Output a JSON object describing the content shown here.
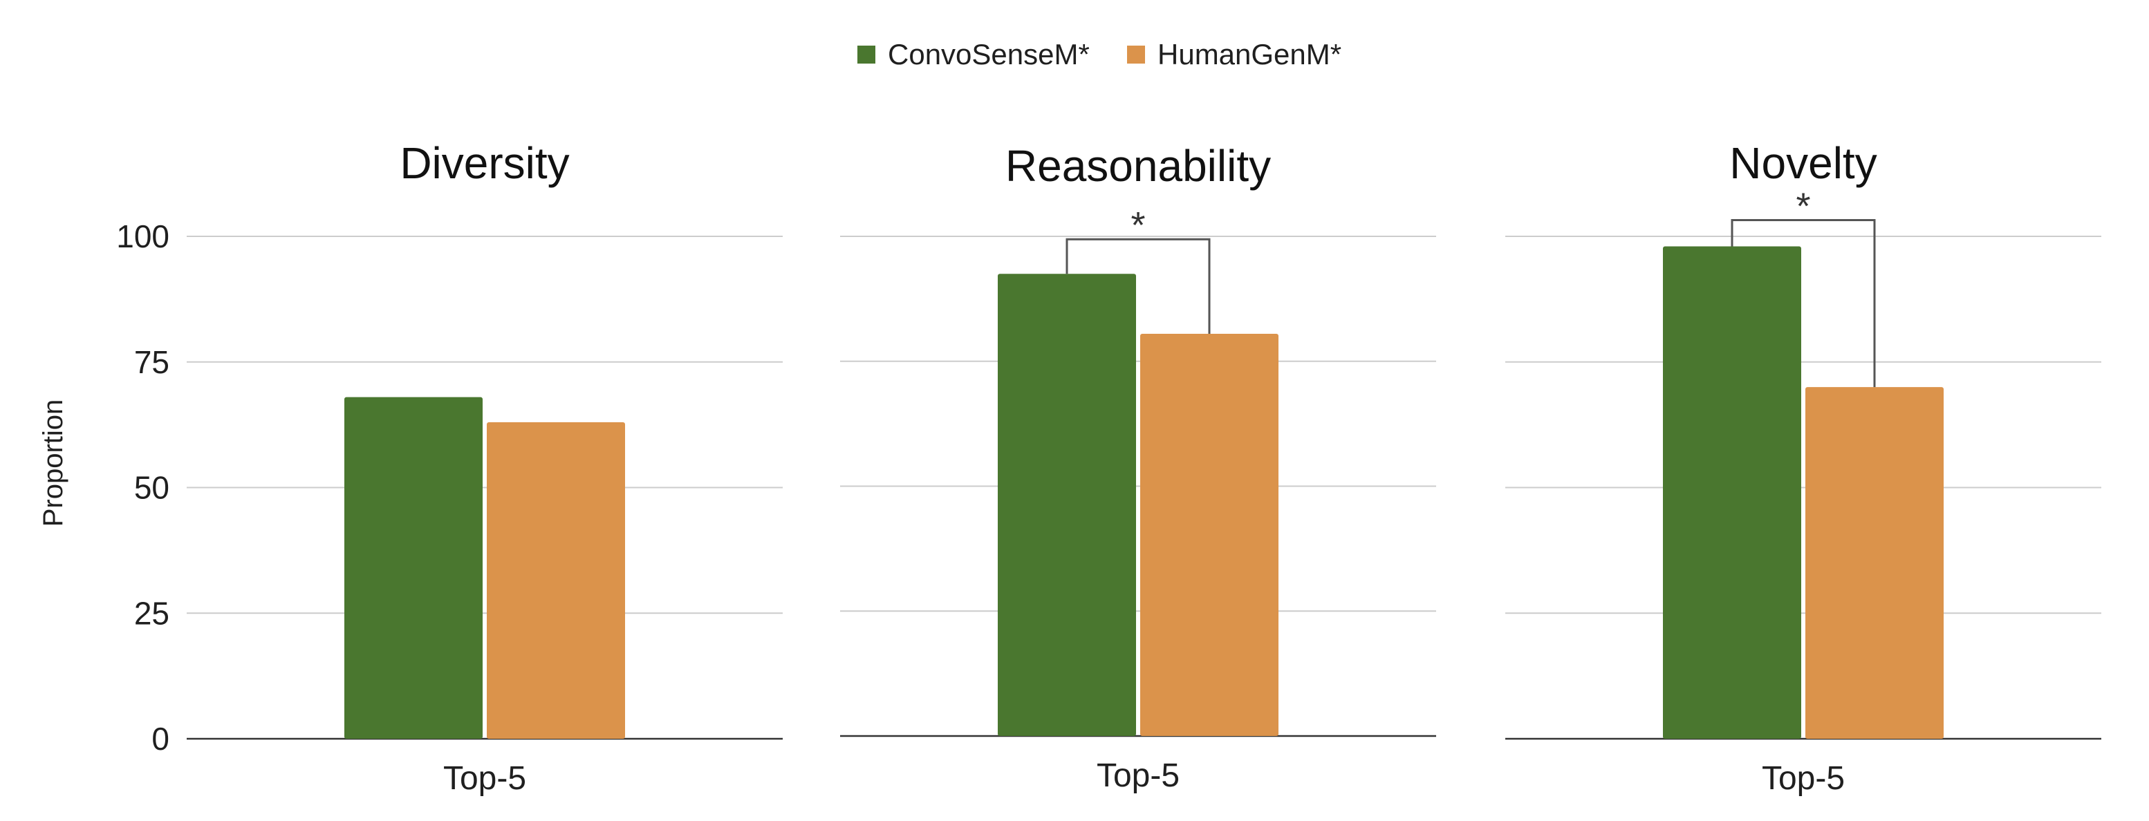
{
  "legend": {
    "items": [
      {
        "label": "ConvoSenseM*",
        "color": "#4a772f"
      },
      {
        "label": "HumanGenM*",
        "color": "#db934b"
      }
    ]
  },
  "y_axis_label": "Proportion",
  "chart_data": [
    {
      "type": "bar",
      "title": "Diversity",
      "categories": [
        "Top-5"
      ],
      "ylim": [
        0,
        100
      ],
      "yticks": [
        0,
        25,
        50,
        75,
        100
      ],
      "ylabel": "Proportion",
      "grid": true,
      "series": [
        {
          "name": "ConvoSenseM*",
          "values": [
            68
          ]
        },
        {
          "name": "HumanGenM*",
          "values": [
            63
          ]
        }
      ],
      "significance": ""
    },
    {
      "type": "bar",
      "title": "Reasonability",
      "categories": [
        "Top-5"
      ],
      "ylim": [
        0,
        100
      ],
      "yticks": [
        0,
        25,
        50,
        75,
        100
      ],
      "ylabel": "",
      "grid": true,
      "series": [
        {
          "name": "ConvoSenseM*",
          "values": [
            92.5
          ]
        },
        {
          "name": "HumanGenM*",
          "values": [
            80.5
          ]
        }
      ],
      "significance": "*"
    },
    {
      "type": "bar",
      "title": "Novelty",
      "categories": [
        "Top-5"
      ],
      "ylim": [
        0,
        100
      ],
      "yticks": [
        0,
        25,
        50,
        75,
        100
      ],
      "ylabel": "",
      "grid": true,
      "series": [
        {
          "name": "ConvoSenseM*",
          "values": [
            98
          ]
        },
        {
          "name": "HumanGenM*",
          "values": [
            70
          ]
        }
      ],
      "significance": "*"
    }
  ]
}
